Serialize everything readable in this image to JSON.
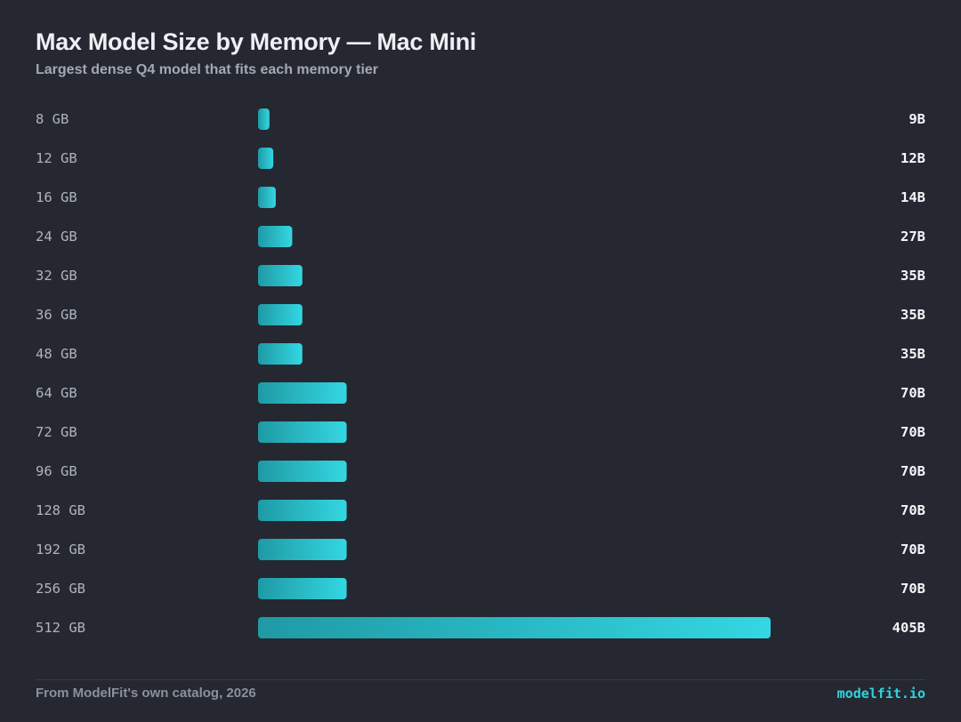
{
  "colors": {
    "background": "#252831",
    "bar_start": "#1f9aa5",
    "bar_end": "#33d7e2",
    "accent": "#2fd3df"
  },
  "chart_data": {
    "type": "bar",
    "orientation": "horizontal",
    "title": "Max Model Size by Memory — Mac Mini",
    "subtitle": "Largest dense Q4 model that fits each memory tier",
    "categories": [
      "8 GB",
      "12 GB",
      "16 GB",
      "24 GB",
      "32 GB",
      "36 GB",
      "48 GB",
      "64 GB",
      "72 GB",
      "96 GB",
      "128 GB",
      "192 GB",
      "256 GB",
      "512 GB"
    ],
    "values": [
      9,
      12,
      14,
      27,
      35,
      35,
      35,
      70,
      70,
      70,
      70,
      70,
      70,
      405
    ],
    "value_labels": [
      "9B",
      "12B",
      "14B",
      "27B",
      "35B",
      "35B",
      "35B",
      "70B",
      "70B",
      "70B",
      "70B",
      "70B",
      "70B",
      "405B"
    ],
    "value_unit": "B parameters",
    "xlim": [
      0,
      405
    ],
    "grid": false,
    "legend": "none"
  },
  "footer": {
    "source": "From ModelFit's own catalog, 2026",
    "brand": "modelfit.io"
  }
}
